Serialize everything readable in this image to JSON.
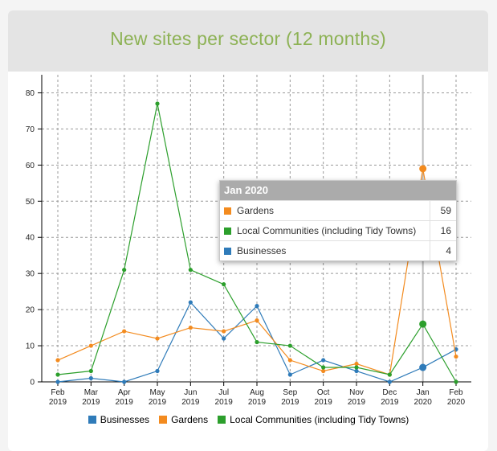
{
  "header": {
    "title": "New sites per sector (12 months)"
  },
  "colors": {
    "Businesses": "#2f7bb9",
    "Gardens": "#f38b1f",
    "Local Communities (including Tidy Towns)": "#2c9f2c"
  },
  "chart_data": {
    "type": "line",
    "title": "New sites per sector (12 months)",
    "xlabel": "",
    "ylabel": "",
    "ylim": [
      0,
      85
    ],
    "yticks": [
      0,
      10,
      20,
      30,
      40,
      50,
      60,
      70,
      80
    ],
    "grid": true,
    "legend_position": "bottom",
    "categories": [
      [
        "Feb",
        "2019"
      ],
      [
        "Mar",
        "2019"
      ],
      [
        "Apr",
        "2019"
      ],
      [
        "May",
        "2019"
      ],
      [
        "Jun",
        "2019"
      ],
      [
        "Jul",
        "2019"
      ],
      [
        "Aug",
        "2019"
      ],
      [
        "Sep",
        "2019"
      ],
      [
        "Oct",
        "2019"
      ],
      [
        "Nov",
        "2019"
      ],
      [
        "Dec",
        "2019"
      ],
      [
        "Jan",
        "2020"
      ],
      [
        "Feb",
        "2020"
      ]
    ],
    "series": [
      {
        "name": "Businesses",
        "color": "#2f7bb9",
        "values": [
          0,
          1,
          0,
          3,
          22,
          12,
          21,
          2,
          6,
          3,
          0,
          4,
          9
        ]
      },
      {
        "name": "Gardens",
        "color": "#f38b1f",
        "values": [
          6,
          10,
          14,
          12,
          15,
          14,
          17,
          6,
          3,
          5,
          2,
          59,
          7
        ]
      },
      {
        "name": "Local Communities (including Tidy Towns)",
        "color": "#2c9f2c",
        "values": [
          2,
          3,
          31,
          77,
          31,
          27,
          11,
          10,
          4,
          4,
          2,
          16,
          0
        ]
      }
    ],
    "highlight_index": 11
  },
  "tooltip": {
    "title": "Jan 2020",
    "rows": [
      {
        "name": "Gardens",
        "value": "59",
        "color": "#f38b1f"
      },
      {
        "name": "Local Communities (including Tidy Towns)",
        "value": "16",
        "color": "#2c9f2c"
      },
      {
        "name": "Businesses",
        "value": "4",
        "color": "#2f7bb9"
      }
    ]
  },
  "legend": {
    "items": [
      {
        "label": "Businesses",
        "color": "#2f7bb9"
      },
      {
        "label": "Gardens",
        "color": "#f38b1f"
      },
      {
        "label": "Local Communities (including Tidy Towns)",
        "color": "#2c9f2c"
      }
    ]
  }
}
